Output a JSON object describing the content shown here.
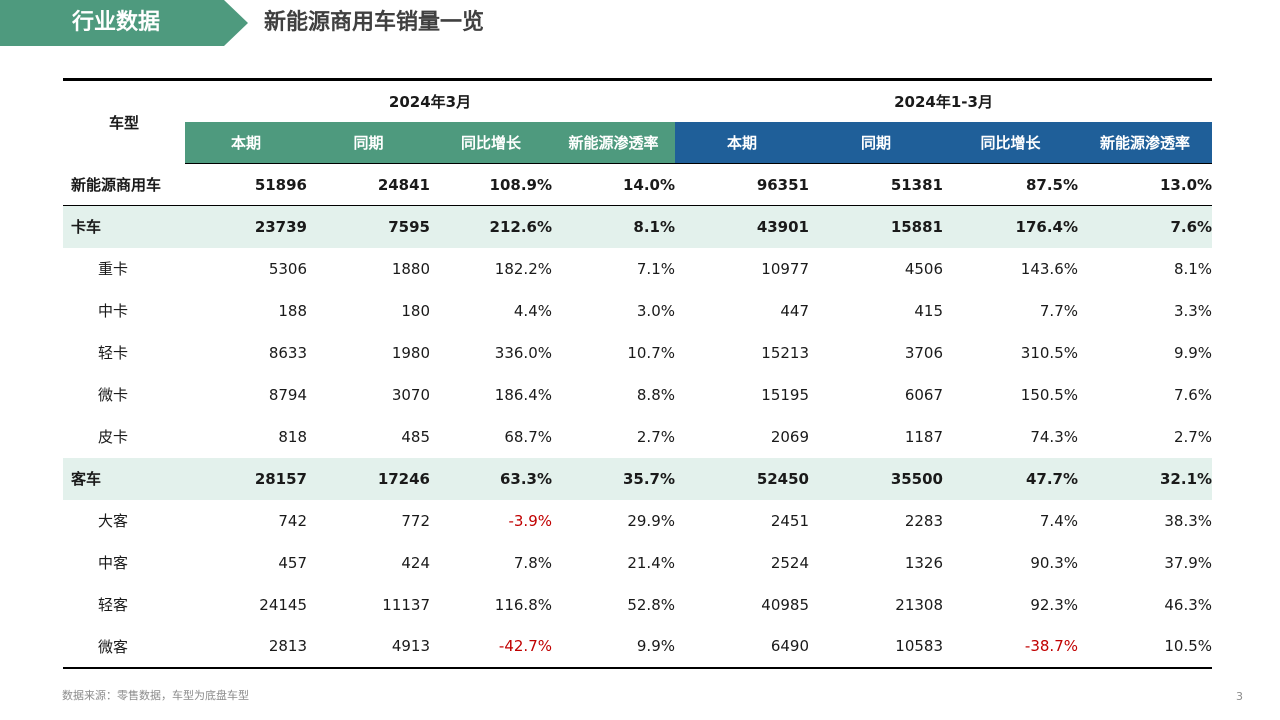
{
  "header": {
    "tag": "行业数据",
    "title": "新能源商用车销量一览"
  },
  "table": {
    "type_header": "车型",
    "periods": [
      "2024年3月",
      "2024年1-3月"
    ],
    "sub_headers": [
      "本期",
      "同期",
      "同比增长",
      "新能源渗透率",
      "本期",
      "同期",
      "同比增长",
      "新能源渗透率"
    ],
    "rows": [
      {
        "label": "新能源商用车",
        "kind": "total",
        "values": [
          "51896",
          "24841",
          "108.9%",
          "14.0%",
          "96351",
          "51381",
          "87.5%",
          "13.0%"
        ],
        "negative": [
          false,
          false,
          false,
          false,
          false,
          false,
          false,
          false
        ]
      },
      {
        "label": "卡车",
        "kind": "group",
        "values": [
          "23739",
          "7595",
          "212.6%",
          "8.1%",
          "43901",
          "15881",
          "176.4%",
          "7.6%"
        ],
        "negative": [
          false,
          false,
          false,
          false,
          false,
          false,
          false,
          false
        ]
      },
      {
        "label": "重卡",
        "kind": "item",
        "values": [
          "5306",
          "1880",
          "182.2%",
          "7.1%",
          "10977",
          "4506",
          "143.6%",
          "8.1%"
        ],
        "negative": [
          false,
          false,
          false,
          false,
          false,
          false,
          false,
          false
        ]
      },
      {
        "label": "中卡",
        "kind": "item",
        "values": [
          "188",
          "180",
          "4.4%",
          "3.0%",
          "447",
          "415",
          "7.7%",
          "3.3%"
        ],
        "negative": [
          false,
          false,
          false,
          false,
          false,
          false,
          false,
          false
        ]
      },
      {
        "label": "轻卡",
        "kind": "item",
        "values": [
          "8633",
          "1980",
          "336.0%",
          "10.7%",
          "15213",
          "3706",
          "310.5%",
          "9.9%"
        ],
        "negative": [
          false,
          false,
          false,
          false,
          false,
          false,
          false,
          false
        ]
      },
      {
        "label": "微卡",
        "kind": "item",
        "values": [
          "8794",
          "3070",
          "186.4%",
          "8.8%",
          "15195",
          "6067",
          "150.5%",
          "7.6%"
        ],
        "negative": [
          false,
          false,
          false,
          false,
          false,
          false,
          false,
          false
        ]
      },
      {
        "label": "皮卡",
        "kind": "item",
        "values": [
          "818",
          "485",
          "68.7%",
          "2.7%",
          "2069",
          "1187",
          "74.3%",
          "2.7%"
        ],
        "negative": [
          false,
          false,
          false,
          false,
          false,
          false,
          false,
          false
        ]
      },
      {
        "label": "客车",
        "kind": "group",
        "values": [
          "28157",
          "17246",
          "63.3%",
          "35.7%",
          "52450",
          "35500",
          "47.7%",
          "32.1%"
        ],
        "negative": [
          false,
          false,
          false,
          false,
          false,
          false,
          false,
          false
        ]
      },
      {
        "label": "大客",
        "kind": "item",
        "values": [
          "742",
          "772",
          "-3.9%",
          "29.9%",
          "2451",
          "2283",
          "7.4%",
          "38.3%"
        ],
        "negative": [
          false,
          false,
          true,
          false,
          false,
          false,
          false,
          false
        ]
      },
      {
        "label": "中客",
        "kind": "item",
        "values": [
          "457",
          "424",
          "7.8%",
          "21.4%",
          "2524",
          "1326",
          "90.3%",
          "37.9%"
        ],
        "negative": [
          false,
          false,
          false,
          false,
          false,
          false,
          false,
          false
        ]
      },
      {
        "label": "轻客",
        "kind": "item",
        "values": [
          "24145",
          "11137",
          "116.8%",
          "52.8%",
          "40985",
          "21308",
          "92.3%",
          "46.3%"
        ],
        "negative": [
          false,
          false,
          false,
          false,
          false,
          false,
          false,
          false
        ]
      },
      {
        "label": "微客",
        "kind": "item",
        "values": [
          "2813",
          "4913",
          "-42.7%",
          "9.9%",
          "6490",
          "10583",
          "-38.7%",
          "10.5%"
        ],
        "negative": [
          false,
          false,
          true,
          false,
          false,
          false,
          true,
          false
        ]
      }
    ]
  },
  "footer": {
    "source": "数据来源：零售数据，车型为底盘车型",
    "page_number": "3"
  },
  "colors": {
    "accent_green": "#4e9a7e",
    "accent_blue": "#1f5f99",
    "group_row_bg": "#e3f1ec",
    "negative": "#c00000"
  }
}
